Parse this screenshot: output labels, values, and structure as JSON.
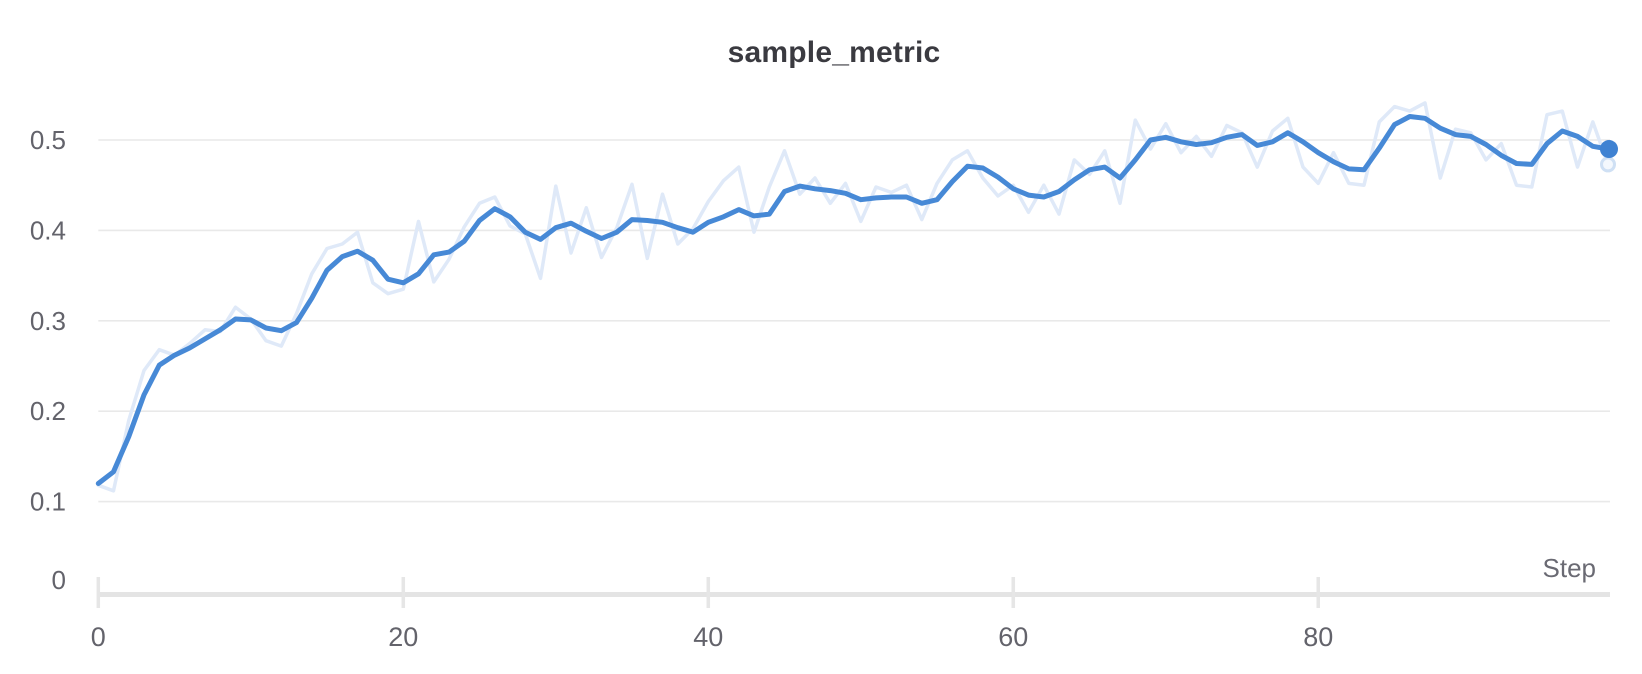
{
  "panel": {
    "background": "#ffffff"
  },
  "chart_data": {
    "type": "line",
    "title": "sample_metric",
    "xlabel": "Step",
    "ylabel": "",
    "xlim": [
      0,
      99
    ],
    "ylim": [
      0,
      0.55
    ],
    "grid": "horizontal",
    "legend": "none",
    "x_ticks": [
      0,
      20,
      40,
      60,
      80
    ],
    "x_tick_labels": [
      "0",
      "20",
      "40",
      "60",
      "80"
    ],
    "y_ticks": [
      0,
      0.1,
      0.2,
      0.3,
      0.4,
      0.5
    ],
    "y_tick_labels": [
      "0",
      "0.1",
      "0.2",
      "0.3",
      "0.4",
      "0.5"
    ],
    "x_start": 0,
    "x_step": 1,
    "series": [
      {
        "name": "raw",
        "role": "original-unsmoothed",
        "values": [
          0.118,
          0.112,
          0.19,
          0.245,
          0.268,
          0.262,
          0.275,
          0.29,
          0.288,
          0.315,
          0.302,
          0.278,
          0.272,
          0.308,
          0.352,
          0.38,
          0.385,
          0.398,
          0.342,
          0.33,
          0.335,
          0.41,
          0.343,
          0.368,
          0.404,
          0.43,
          0.437,
          0.405,
          0.396,
          0.347,
          0.449,
          0.375,
          0.425,
          0.37,
          0.403,
          0.451,
          0.369,
          0.44,
          0.385,
          0.402,
          0.432,
          0.455,
          0.47,
          0.398,
          0.448,
          0.488,
          0.44,
          0.458,
          0.43,
          0.452,
          0.41,
          0.448,
          0.442,
          0.45,
          0.412,
          0.452,
          0.478,
          0.488,
          0.458,
          0.438,
          0.45,
          0.42,
          0.45,
          0.418,
          0.478,
          0.462,
          0.488,
          0.43,
          0.522,
          0.49,
          0.518,
          0.486,
          0.504,
          0.482,
          0.516,
          0.508,
          0.47,
          0.51,
          0.524,
          0.47,
          0.452,
          0.486,
          0.452,
          0.45,
          0.52,
          0.537,
          0.532,
          0.541,
          0.458,
          0.512,
          0.508,
          0.478,
          0.496,
          0.45,
          0.448,
          0.528,
          0.532,
          0.47,
          0.52,
          0.473
        ]
      },
      {
        "name": "smoothed",
        "role": "smoothed",
        "values": [
          0.12,
          0.133,
          0.172,
          0.218,
          0.251,
          0.262,
          0.27,
          0.28,
          0.29,
          0.302,
          0.301,
          0.292,
          0.289,
          0.298,
          0.325,
          0.356,
          0.371,
          0.377,
          0.367,
          0.346,
          0.342,
          0.352,
          0.373,
          0.376,
          0.388,
          0.411,
          0.424,
          0.415,
          0.398,
          0.39,
          0.403,
          0.408,
          0.399,
          0.391,
          0.398,
          0.412,
          0.411,
          0.409,
          0.403,
          0.398,
          0.409,
          0.415,
          0.423,
          0.416,
          0.418,
          0.443,
          0.449,
          0.446,
          0.444,
          0.441,
          0.434,
          0.436,
          0.437,
          0.437,
          0.43,
          0.434,
          0.454,
          0.471,
          0.469,
          0.459,
          0.446,
          0.439,
          0.437,
          0.443,
          0.456,
          0.467,
          0.47,
          0.458,
          0.478,
          0.5,
          0.503,
          0.498,
          0.495,
          0.497,
          0.503,
          0.506,
          0.494,
          0.498,
          0.508,
          0.498,
          0.486,
          0.476,
          0.468,
          0.467,
          0.491,
          0.517,
          0.526,
          0.524,
          0.513,
          0.506,
          0.504,
          0.495,
          0.483,
          0.474,
          0.473,
          0.496,
          0.51,
          0.504,
          0.493,
          0.49
        ]
      }
    ],
    "last_values": {
      "smoothed": 0.49,
      "raw": 0.473
    }
  },
  "colors": {
    "smoothed_line": "#4789d6",
    "raw_line": "#dfe9f8",
    "endpoint_dot": "#3f82d2",
    "raw_endpoint_ring": "#cfe0f4",
    "raw_endpoint_fill": "#f4f8fd",
    "gridline": "#e9e9e9",
    "axis_bar": "#e4e4e4",
    "axis_tick": "#e6e6e6",
    "title_text": "#3a3a40",
    "tick_text": "#63636b",
    "step_text": "#6a6a73"
  }
}
